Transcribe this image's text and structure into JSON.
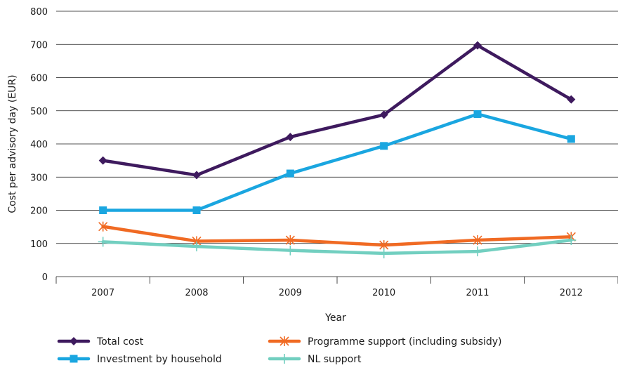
{
  "chart_data": {
    "type": "line",
    "title": "",
    "xlabel": "Year",
    "ylabel": "Cost per advisory day (EUR)",
    "categories": [
      "2007",
      "2008",
      "2009",
      "2010",
      "2011",
      "2012"
    ],
    "ylim": [
      0,
      800
    ],
    "yticks": [
      0,
      100,
      200,
      300,
      400,
      500,
      600,
      700,
      800
    ],
    "grid": "horizontal",
    "legend_position": "bottom",
    "series": [
      {
        "name": "Total cost",
        "color": "#3e1a5e",
        "marker": "diamond",
        "values": [
          350,
          306,
          421,
          488,
          697,
          534
        ]
      },
      {
        "name": "Investment by household",
        "color": "#1aa6e0",
        "marker": "square",
        "values": [
          200,
          200,
          311,
          394,
          490,
          415
        ]
      },
      {
        "name": "Programme support (including subsidy)",
        "color": "#f06a23",
        "marker": "star",
        "values": [
          151,
          107,
          110,
          95,
          110,
          120
        ]
      },
      {
        "name": "NL support",
        "color": "#72cfc0",
        "marker": "plus",
        "values": [
          105,
          91,
          79,
          70,
          76,
          110
        ]
      }
    ]
  }
}
